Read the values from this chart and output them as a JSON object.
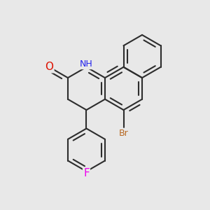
{
  "bg_color": "#e8e8e8",
  "bond_color": "#2d2d2d",
  "bond_width": 1.5,
  "atom_colors": {
    "O": "#dd1100",
    "N": "#2222ee",
    "Br": "#b86820",
    "F": "#ee00ee"
  },
  "L": 0.52
}
